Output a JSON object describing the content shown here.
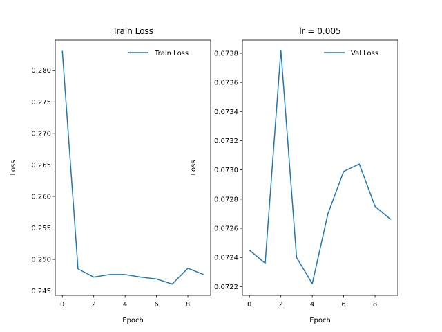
{
  "chart_data": [
    {
      "type": "line",
      "title": "Train Loss",
      "xlabel": "Epoch",
      "ylabel": "Loss",
      "xlim": [
        -0.45,
        9.45
      ],
      "ylim": [
        0.2443,
        0.2848
      ],
      "xticks": [
        0,
        2,
        4,
        6,
        8
      ],
      "yticks": [
        0.245,
        0.25,
        0.255,
        0.26,
        0.265,
        0.27,
        0.275,
        0.28
      ],
      "ytick_labels": [
        "0.245",
        "0.250",
        "0.255",
        "0.260",
        "0.265",
        "0.270",
        "0.275",
        "0.280"
      ],
      "legend_position": "top-right",
      "grid": false,
      "series": [
        {
          "name": "Train Loss",
          "color": "#1f77b4",
          "x": [
            0,
            1,
            2,
            3,
            4,
            5,
            6,
            7,
            8,
            9
          ],
          "values": [
            0.2831,
            0.2485,
            0.2472,
            0.2476,
            0.2476,
            0.2472,
            0.2469,
            0.2461,
            0.2486,
            0.2476
          ]
        }
      ]
    },
    {
      "type": "line",
      "title": "lr = 0.005",
      "xlabel": "Epoch",
      "ylabel": "Loss",
      "xlim": [
        -0.45,
        9.45
      ],
      "ylim": [
        0.07214,
        0.07389
      ],
      "xticks": [
        0,
        2,
        4,
        6,
        8
      ],
      "yticks": [
        0.0722,
        0.0724,
        0.0726,
        0.0728,
        0.073,
        0.0732,
        0.0734,
        0.0736,
        0.0738
      ],
      "ytick_labels": [
        "0.0722",
        "0.0724",
        "0.0726",
        "0.0728",
        "0.0730",
        "0.0732",
        "0.0734",
        "0.0736",
        "0.0738"
      ],
      "legend_position": "top-right",
      "grid": false,
      "series": [
        {
          "name": "Val Loss",
          "color": "#1f77b4",
          "x": [
            0,
            1,
            2,
            3,
            4,
            5,
            6,
            7,
            8,
            9
          ],
          "values": [
            0.07245,
            0.07236,
            0.07382,
            0.0724,
            0.07222,
            0.0727,
            0.07299,
            0.07304,
            0.07275,
            0.07266
          ]
        }
      ]
    }
  ]
}
